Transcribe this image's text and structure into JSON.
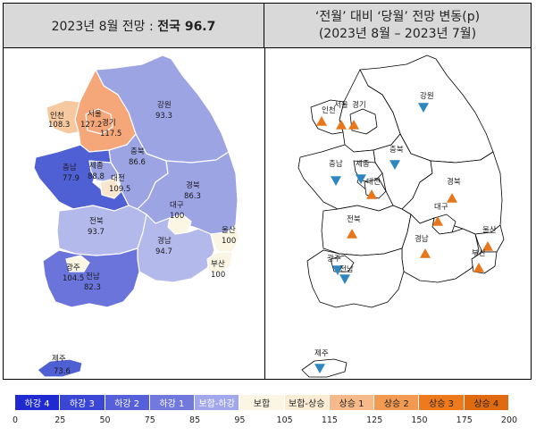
{
  "left_panel": {
    "title_prefix": "2023년 8월 전망 : ",
    "title_bold": "전국 96.7"
  },
  "right_panel": {
    "title_line1": "‘전월’ 대비 ‘당월’ 전망 변동(p)",
    "title_line2": "(2023년 8월 – 2023년 7월)"
  },
  "regions": [
    {
      "name": "인천",
      "value": "108.3",
      "color": "#f7c9a0"
    },
    {
      "name": "서울",
      "value": "127.2",
      "color": "#f5a77a"
    },
    {
      "name": "경기",
      "value": "117.5",
      "color": "#f5a77a"
    },
    {
      "name": "강원",
      "value": "93.3",
      "color": "#9da4e4"
    },
    {
      "name": "충북",
      "value": "86.6",
      "color": "#9da4e4"
    },
    {
      "name": "충남",
      "value": "77.9",
      "color": "#4f5fd4"
    },
    {
      "name": "세종",
      "value": "88.8",
      "color": "#9da4e4"
    },
    {
      "name": "대전",
      "value": "109.5",
      "color": "#f9e6cf"
    },
    {
      "name": "경북",
      "value": "86.3",
      "color": "#9da4e4"
    },
    {
      "name": "대구",
      "value": "100",
      "color": "#fbf6e4"
    },
    {
      "name": "전북",
      "value": "93.7",
      "color": "#b4b9eb"
    },
    {
      "name": "경남",
      "value": "94.7",
      "color": "#b4b9eb"
    },
    {
      "name": "울산",
      "value": "100",
      "color": "#fbf6e4"
    },
    {
      "name": "부산",
      "value": "100",
      "color": "#fbf6e4"
    },
    {
      "name": "광주",
      "value": "104.5",
      "color": "#fbf6e4"
    },
    {
      "name": "전남",
      "value": "82.3",
      "color": "#6b74da"
    },
    {
      "name": "제주",
      "value": "73.6",
      "color": "#4f5fd4"
    }
  ],
  "change_map": {
    "markers": [
      {
        "name": "인천",
        "direction": "up",
        "color": "#e8761a"
      },
      {
        "name": "서울",
        "direction": "up",
        "color": "#e8761a"
      },
      {
        "name": "경기",
        "direction": "up",
        "color": "#e8761a"
      },
      {
        "name": "강원",
        "direction": "down",
        "color": "#2e86c1"
      },
      {
        "name": "충남",
        "direction": "down",
        "color": "#2e86c1"
      },
      {
        "name": "세종",
        "direction": "down",
        "color": "#2e86c1"
      },
      {
        "name": "충북",
        "direction": "down",
        "color": "#2e86c1"
      },
      {
        "name": "대전",
        "direction": "up",
        "color": "#e8761a"
      },
      {
        "name": "경북",
        "direction": "up",
        "color": "#e8761a"
      },
      {
        "name": "전북",
        "direction": "up",
        "color": "#e8761a"
      },
      {
        "name": "대구",
        "direction": "up",
        "color": "#e8761a"
      },
      {
        "name": "울산",
        "direction": "up",
        "color": "#e8761a"
      },
      {
        "name": "경남",
        "direction": "up",
        "color": "#e8761a"
      },
      {
        "name": "부산",
        "direction": "up",
        "color": "#e8761a"
      },
      {
        "name": "광주",
        "direction": "down",
        "color": "#2e86c1"
      },
      {
        "name": "전남",
        "direction": "down",
        "color": "#2e86c1"
      },
      {
        "name": "제주",
        "direction": "down",
        "color": "#2e86c1"
      }
    ]
  },
  "legend": {
    "segments": [
      {
        "label": "하강 4",
        "color": "#1f2bd1"
      },
      {
        "label": "하강 3",
        "color": "#3a46d6"
      },
      {
        "label": "하강 2",
        "color": "#5560da"
      },
      {
        "label": "하강 1",
        "color": "#7179df"
      },
      {
        "label": "보합-하강",
        "color": "#a1a7ea"
      },
      {
        "label": "보합",
        "color": "#fbf6e4"
      },
      {
        "label": "보합-상승",
        "color": "#fbecd6"
      },
      {
        "label": "상승 1",
        "color": "#f6b98a"
      },
      {
        "label": "상승 2",
        "color": "#f39a52"
      },
      {
        "label": "상승 3",
        "color": "#ef7a1e"
      },
      {
        "label": "상승 4",
        "color": "#e06a10"
      }
    ],
    "ticks": [
      "0",
      "25",
      "50",
      "75",
      "85",
      "95",
      "105",
      "115",
      "125",
      "150",
      "175",
      "200"
    ]
  }
}
